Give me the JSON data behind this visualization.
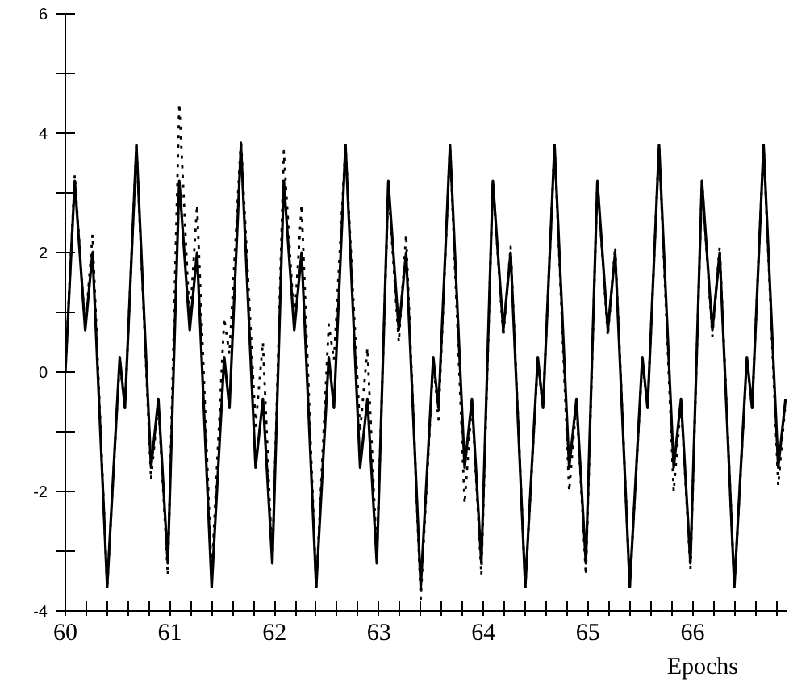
{
  "chart_data": {
    "type": "line",
    "xlabel": "Epochs",
    "xlim": [
      60,
      66.9
    ],
    "ylim": [
      -4,
      6
    ],
    "xticks": [
      60,
      {
        "value": 60.2,
        "label": null
      },
      {
        "value": 60.4,
        "label": null
      },
      {
        "value": 60.6,
        "label": null
      },
      {
        "value": 60.8,
        "label": null
      },
      61,
      {
        "value": 61.2,
        "label": null
      },
      {
        "value": 61.4,
        "label": null
      },
      {
        "value": 61.6,
        "label": null
      },
      {
        "value": 61.8,
        "label": null
      },
      62,
      {
        "value": 62.2,
        "label": null
      },
      {
        "value": 62.4,
        "label": null
      },
      {
        "value": 62.6,
        "label": null
      },
      {
        "value": 62.8,
        "label": null
      },
      63,
      {
        "value": 63.2,
        "label": null
      },
      {
        "value": 63.4,
        "label": null
      },
      {
        "value": 63.6,
        "label": null
      },
      {
        "value": 63.8,
        "label": null
      },
      64,
      {
        "value": 64.2,
        "label": null
      },
      {
        "value": 64.4,
        "label": null
      },
      {
        "value": 64.6,
        "label": null
      },
      {
        "value": 64.8,
        "label": null
      },
      65,
      {
        "value": 65.2,
        "label": null
      },
      {
        "value": 65.4,
        "label": null
      },
      {
        "value": 65.6,
        "label": null
      },
      {
        "value": 65.8,
        "label": null
      },
      66,
      {
        "value": 66.2,
        "label": null
      },
      {
        "value": 66.4,
        "label": null
      },
      {
        "value": 66.6,
        "label": null
      },
      {
        "value": 66.8,
        "label": null
      }
    ],
    "yticks": [
      -4,
      {
        "value": -3,
        "label": null
      },
      -2,
      {
        "value": -1,
        "label": null
      },
      0,
      {
        "value": 1,
        "label": null
      },
      2,
      {
        "value": 3,
        "label": null
      },
      4,
      {
        "value": 5,
        "label": null
      },
      6
    ],
    "grid": false,
    "marker": "none",
    "series": [
      {
        "color": "#000000",
        "line_style": "solid",
        "x": [
          60,
          60.09,
          60.19,
          60.26,
          60.4,
          60.52,
          60.57,
          60.68,
          60.82,
          60.89,
          60.98,
          61.09,
          61.19,
          61.26,
          61.4,
          61.52,
          61.57,
          61.68,
          61.82,
          61.89,
          61.98,
          62.09,
          62.19,
          62.26,
          62.4,
          62.52,
          62.57,
          62.68,
          62.82,
          62.89,
          62.98,
          63.09,
          63.19,
          63.26,
          63.4,
          63.52,
          63.57,
          63.68,
          63.82,
          63.89,
          63.98,
          64.09,
          64.19,
          64.26,
          64.4,
          64.52,
          64.57,
          64.68,
          64.82,
          64.89,
          64.98,
          65.09,
          65.19,
          65.26,
          65.4,
          65.52,
          65.57,
          65.68,
          65.82,
          65.89,
          65.98,
          66.09,
          66.19,
          66.26,
          66.4,
          66.52,
          66.57,
          66.68,
          66.82,
          66.89
        ],
        "values": [
          0,
          3.2,
          0.7,
          2.0,
          -3.6,
          0.25,
          -0.6,
          3.8,
          -1.6,
          -0.45,
          -3.2,
          3.2,
          0.7,
          2.0,
          -3.6,
          0.25,
          -0.6,
          3.8,
          -1.6,
          -0.45,
          -3.2,
          3.2,
          0.7,
          2.0,
          -3.6,
          0.25,
          -0.6,
          3.8,
          -1.6,
          -0.45,
          -3.2,
          3.2,
          0.7,
          2.0,
          -3.6,
          0.25,
          -0.6,
          3.8,
          -1.6,
          -0.45,
          -3.2,
          3.2,
          0.7,
          2.0,
          -3.6,
          0.25,
          -0.6,
          3.8,
          -1.6,
          -0.45,
          -3.2,
          3.2,
          0.7,
          2.0,
          -3.6,
          0.25,
          -0.6,
          3.8,
          -1.6,
          -0.45,
          -3.2,
          3.2,
          0.7,
          2.0,
          -3.6,
          0.25,
          -0.6,
          3.8,
          -1.6,
          -0.45
        ]
      },
      {
        "color": "#000000",
        "line_style": "dotted",
        "x": [
          60,
          60.09,
          60.19,
          60.26,
          60.4,
          60.52,
          60.57,
          60.68,
          60.82,
          60.89,
          60.98,
          61.09,
          61.19,
          61.26,
          61.4,
          61.52,
          61.57,
          61.68,
          61.82,
          61.89,
          61.98,
          62.09,
          62.19,
          62.26,
          62.4,
          62.52,
          62.57,
          62.68,
          62.82,
          62.89,
          62.98,
          63.09,
          63.19,
          63.26,
          63.4,
          63.52,
          63.57,
          63.68,
          63.82,
          63.89,
          63.98,
          64.09,
          64.19,
          64.26,
          64.4,
          64.52,
          64.57,
          64.68,
          64.82,
          64.89,
          64.98,
          65.09,
          65.19,
          65.26,
          65.4,
          65.52,
          65.57,
          65.68,
          65.82,
          65.89,
          65.98,
          66.09,
          66.19,
          66.26,
          66.4,
          66.52,
          66.57,
          66.68,
          66.82,
          66.89
        ],
        "values": [
          0,
          3.3,
          0.7,
          2.3,
          -3.6,
          0.2,
          -0.6,
          3.8,
          -1.8,
          -0.5,
          -3.4,
          4.5,
          0.8,
          2.8,
          -3.4,
          0.9,
          0.3,
          3.9,
          -0.9,
          0.5,
          -3.2,
          3.7,
          0.8,
          2.8,
          -3.6,
          0.8,
          0.2,
          3.8,
          -1.0,
          0.4,
          -3.1,
          3.1,
          0.5,
          2.3,
          -3.8,
          0.2,
          -0.8,
          3.8,
          -2.2,
          -0.5,
          -3.4,
          3.2,
          0.6,
          2.1,
          -3.6,
          0.2,
          -0.6,
          3.8,
          -2.0,
          -0.5,
          -3.4,
          3.2,
          0.6,
          2.1,
          -3.6,
          0.2,
          -0.6,
          3.8,
          -2.0,
          -0.5,
          -3.3,
          3.2,
          0.6,
          2.1,
          -3.6,
          0.2,
          -0.6,
          3.8,
          -1.9,
          -0.5
        ]
      }
    ]
  }
}
